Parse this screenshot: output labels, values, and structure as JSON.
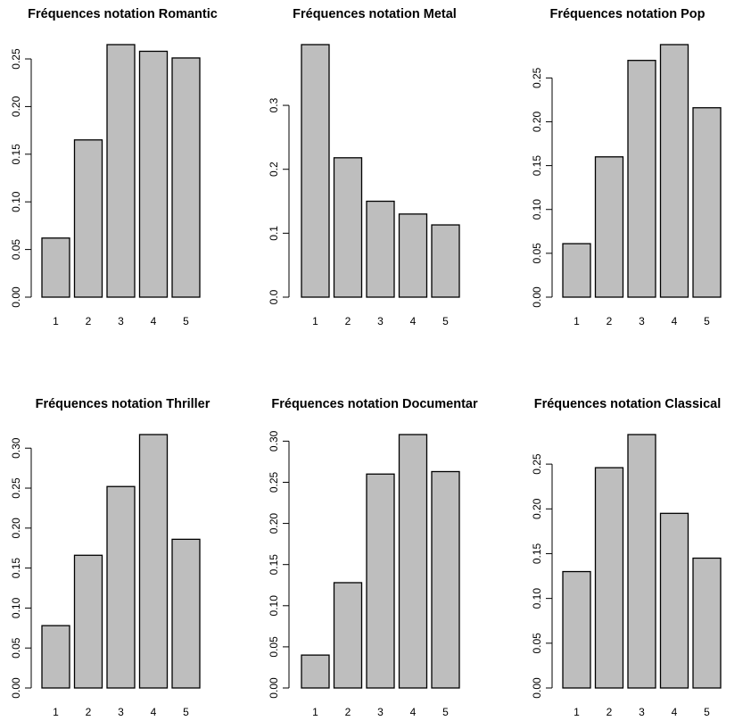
{
  "chart_data": [
    {
      "type": "bar",
      "title": "Fréquences notation Romantic",
      "categories": [
        "1",
        "2",
        "3",
        "4",
        "5"
      ],
      "values": [
        0.062,
        0.165,
        0.265,
        0.258,
        0.251
      ],
      "ylim": [
        0,
        0.265
      ],
      "yticks": [
        "0.00",
        "0.05",
        "0.10",
        "0.15",
        "0.20",
        "0.25"
      ],
      "bar_color": "#bebebe"
    },
    {
      "type": "bar",
      "title": "Fréquences notation Metal",
      "categories": [
        "1",
        "2",
        "3",
        "4",
        "5"
      ],
      "values": [
        0.395,
        0.218,
        0.15,
        0.13,
        0.113
      ],
      "ylim": [
        0,
        0.395
      ],
      "yticks": [
        "0.0",
        "0.1",
        "0.2",
        "0.3"
      ],
      "bar_color": "#bebebe"
    },
    {
      "type": "bar",
      "title": "Fréquences notation Pop",
      "categories": [
        "1",
        "2",
        "3",
        "4",
        "5"
      ],
      "values": [
        0.061,
        0.16,
        0.27,
        0.288,
        0.216
      ],
      "ylim": [
        0,
        0.288
      ],
      "yticks": [
        "0.00",
        "0.05",
        "0.10",
        "0.15",
        "0.20",
        "0.25"
      ],
      "bar_color": "#bebebe"
    },
    {
      "type": "bar",
      "title": "Fréquences notation Thriller",
      "categories": [
        "1",
        "2",
        "3",
        "4",
        "5"
      ],
      "values": [
        0.078,
        0.166,
        0.252,
        0.317,
        0.186
      ],
      "ylim": [
        0,
        0.317
      ],
      "yticks": [
        "0.00",
        "0.05",
        "0.10",
        "0.15",
        "0.20",
        "0.25",
        "0.30"
      ],
      "bar_color": "#bebebe"
    },
    {
      "type": "bar",
      "title": "Fréquences notation Documentar",
      "categories": [
        "1",
        "2",
        "3",
        "4",
        "5"
      ],
      "values": [
        0.04,
        0.128,
        0.26,
        0.308,
        0.263
      ],
      "ylim": [
        0,
        0.308
      ],
      "yticks": [
        "0.00",
        "0.05",
        "0.10",
        "0.15",
        "0.20",
        "0.25",
        "0.30"
      ],
      "bar_color": "#bebebe"
    },
    {
      "type": "bar",
      "title": "Fréquences notation Classical",
      "categories": [
        "1",
        "2",
        "3",
        "4",
        "5"
      ],
      "values": [
        0.13,
        0.246,
        0.283,
        0.195,
        0.145
      ],
      "ylim": [
        0,
        0.283
      ],
      "yticks": [
        "0.00",
        "0.05",
        "0.10",
        "0.15",
        "0.20",
        "0.25"
      ],
      "bar_color": "#bebebe"
    }
  ]
}
